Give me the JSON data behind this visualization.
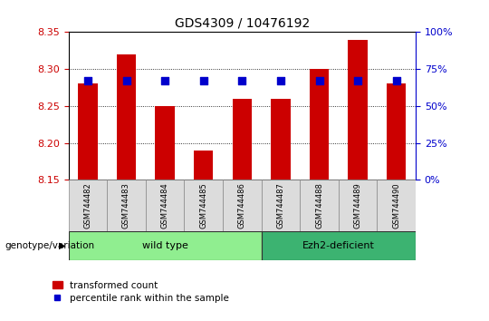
{
  "title": "GDS4309 / 10476192",
  "samples": [
    "GSM744482",
    "GSM744483",
    "GSM744484",
    "GSM744485",
    "GSM744486",
    "GSM744487",
    "GSM744488",
    "GSM744489",
    "GSM744490"
  ],
  "transformed_count": [
    8.28,
    8.32,
    8.25,
    8.19,
    8.26,
    8.26,
    8.3,
    8.34,
    8.28
  ],
  "percentile_rank": [
    67,
    67,
    67,
    67,
    67,
    67,
    67,
    67,
    67
  ],
  "ylim_left": [
    8.15,
    8.35
  ],
  "ylim_right": [
    0,
    100
  ],
  "yticks_left": [
    8.15,
    8.2,
    8.25,
    8.3,
    8.35
  ],
  "yticks_right": [
    0,
    25,
    50,
    75,
    100
  ],
  "groups": [
    {
      "label": "wild type",
      "indices": [
        0,
        1,
        2,
        3,
        4
      ],
      "color": "#90EE90"
    },
    {
      "label": "Ezh2-deficient",
      "indices": [
        5,
        6,
        7,
        8
      ],
      "color": "#3CB371"
    }
  ],
  "group_label": "genotype/variation",
  "bar_color": "#CC0000",
  "dot_color": "#0000CC",
  "bar_width": 0.5,
  "dot_size": 30,
  "left_axis_color": "#CC0000",
  "right_axis_color": "#0000CC",
  "legend_bar_label": "transformed count",
  "legend_dot_label": "percentile rank within the sample",
  "grid_color": "black",
  "background_color": "#ffffff",
  "plot_bg_color": "#ffffff",
  "tick_label_color_left": "#CC0000",
  "tick_label_color_right": "#0000CC",
  "xlim": [
    -0.5,
    8.5
  ]
}
